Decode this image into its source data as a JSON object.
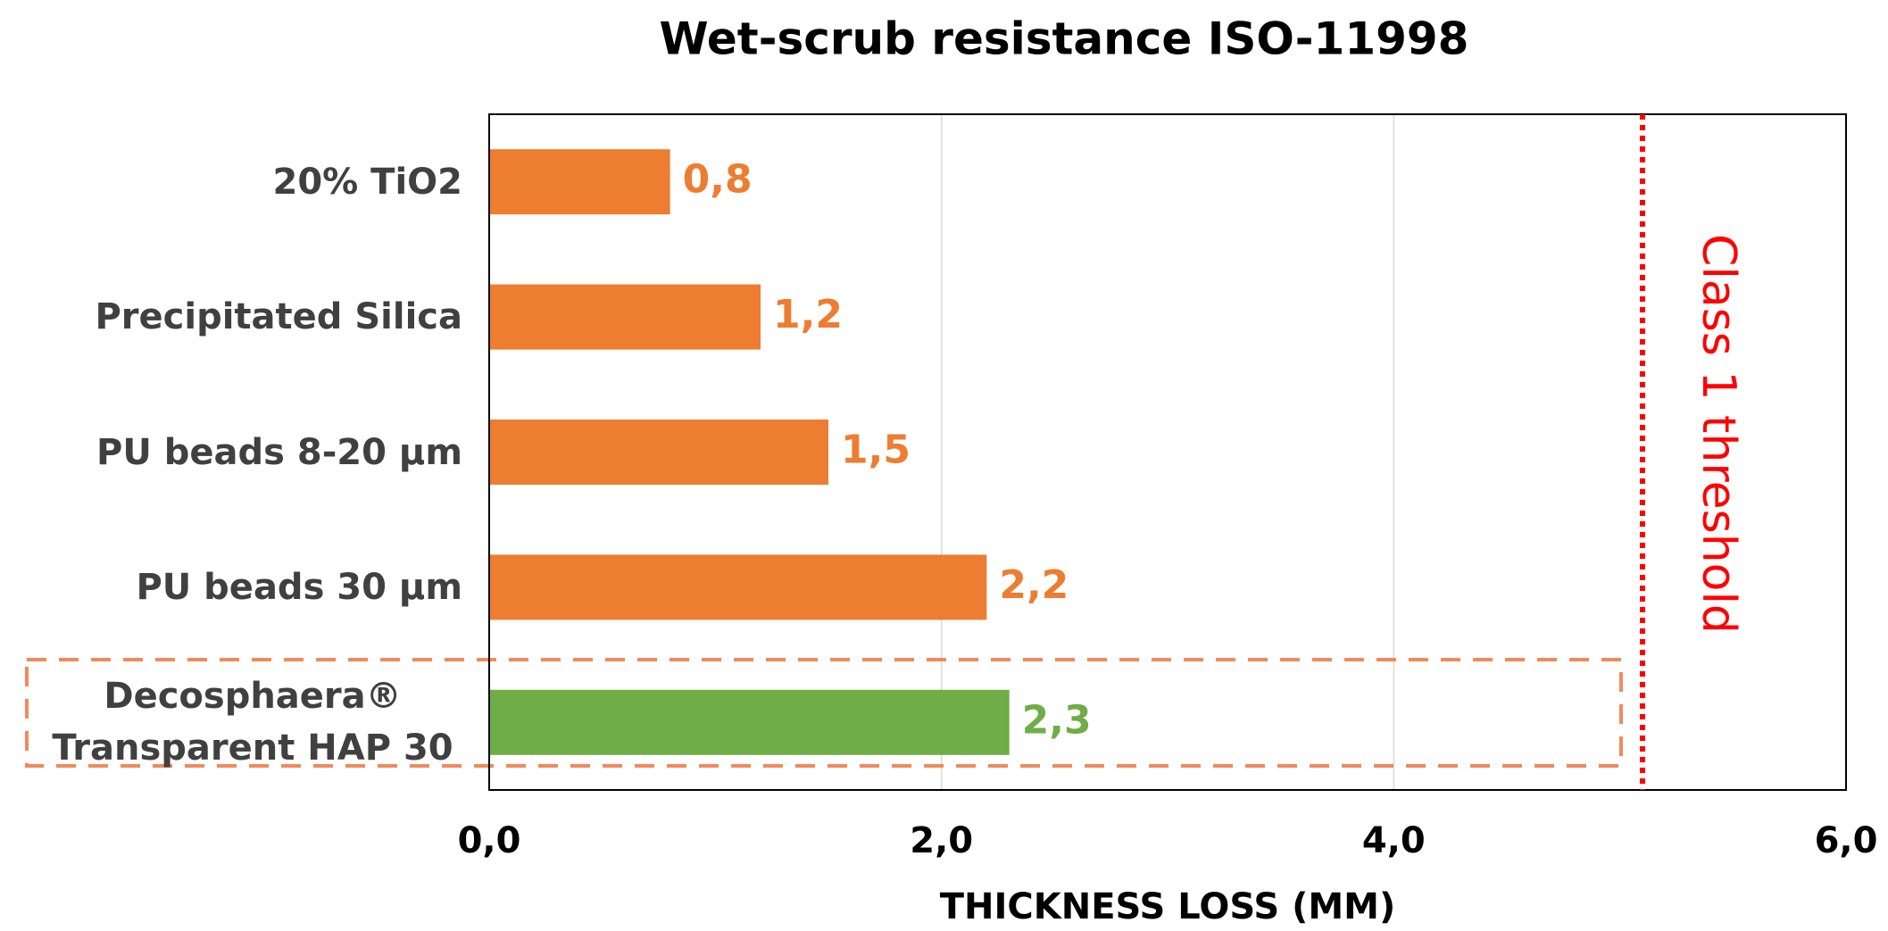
{
  "chart_data": {
    "type": "barh",
    "title": "Wet-scrub resistance ISO-11998",
    "x_label": "THICKNESS LOSS (MM)",
    "categories": [
      "20% TiO2",
      "Precipitated Silica",
      "PU beads 8-20 µm",
      "PU beads 30 µm",
      "Decosphaera® Transparent HAP 30"
    ],
    "values": [
      0.8,
      1.2,
      1.5,
      2.2,
      2.3
    ],
    "value_labels": [
      "0,8",
      "1,2",
      "1,5",
      "2,2",
      "2,3"
    ],
    "colors": [
      "#ed7d31",
      "#ed7d31",
      "#ed7d31",
      "#ed7d31",
      "#70ad47"
    ],
    "xlim": [
      0,
      6
    ],
    "xticks": [
      {
        "value": 0,
        "label": "0,0"
      },
      {
        "value": 2,
        "label": "2,0"
      },
      {
        "value": 4,
        "label": "4,0"
      },
      {
        "value": 6,
        "label": "6,0"
      }
    ],
    "grid": true,
    "threshold": {
      "value": 5.1,
      "label": "Class 1 threshold",
      "color": "#ff0000"
    }
  }
}
